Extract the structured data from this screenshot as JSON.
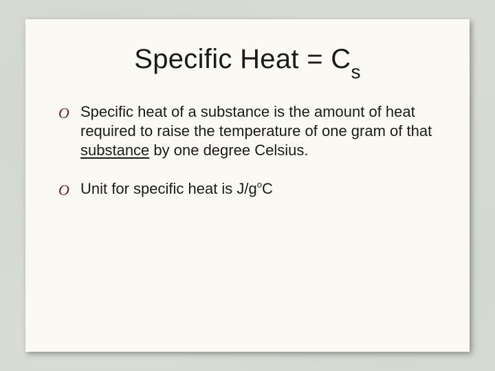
{
  "slide": {
    "background_color": "#fbf9f4",
    "page_background": "#d8dcd5",
    "shadow_color": "rgba(0,0,0,0.35)",
    "text_color": "#1a1a1a",
    "bullet_marker_color": "#6b1f1f",
    "title": {
      "prefix": "Specific Heat = C",
      "subscript": "s",
      "fontsize": 40
    },
    "bullets": [
      {
        "segments": [
          {
            "text": "Specific heat of a substance is the amount of heat required to raise the temperature of one gram of that "
          },
          {
            "text": "substance",
            "underline": true
          },
          {
            "text": " by one degree Celsius."
          }
        ]
      },
      {
        "segments": [
          {
            "text": "Unit for specific heat is J/g"
          },
          {
            "text": "o",
            "superscript": true
          },
          {
            "text": "C"
          }
        ]
      }
    ],
    "body_fontsize": 22
  }
}
